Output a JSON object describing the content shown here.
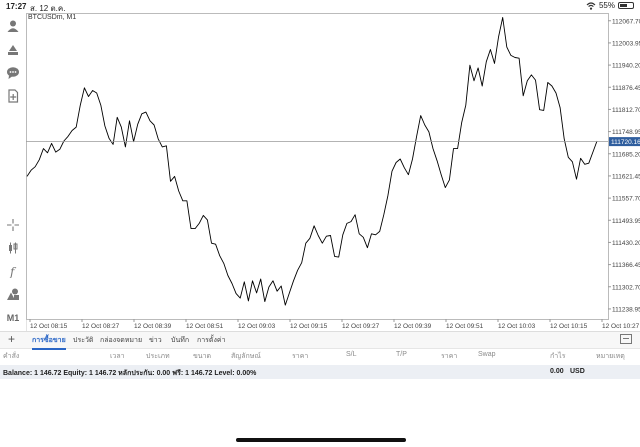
{
  "status_bar": {
    "time": "17:27",
    "date": "ส. 12 ต.ค.",
    "battery": "55%",
    "battery_fraction": 0.55
  },
  "chart": {
    "symbol": "BTCUSDm, M1",
    "current_price": "111720.16",
    "current_value": 111720.16,
    "line_color": "#000000",
    "price_tag_color": "#2f5e9e",
    "price_labels": [
      "112067.70",
      "112003.95",
      "111940.20",
      "111876.45",
      "111812.70",
      "111748.95",
      "111685.20",
      "111621.45",
      "111557.70",
      "111493.95",
      "111430.20",
      "111366.45",
      "111302.70",
      "111238.95"
    ],
    "time_labels": [
      "12 Oct 08:15",
      "12 Oct 08:27",
      "12 Oct 08:39",
      "12 Oct 08:51",
      "12 Oct 09:03",
      "12 Oct 09:15",
      "12 Oct 09:27",
      "12 Oct 09:39",
      "12 Oct 09:51",
      "12 Oct 10:03",
      "12 Oct 10:15",
      "12 Oct 10:27"
    ]
  },
  "chart_data": {
    "type": "line",
    "title": "BTCUSDm, M1",
    "x_range": [
      "12 Oct 08:12",
      "12 Oct 10:29"
    ],
    "ylim": [
      111210,
      112090
    ],
    "grid": false,
    "series": [
      {
        "name": "BTCUSDm",
        "values": [
          111620,
          111638,
          111648,
          111668,
          111700,
          111688,
          111715,
          111690,
          111698,
          111722,
          111735,
          111752,
          111762,
          111825,
          111875,
          111850,
          111867,
          111860,
          111825,
          111765,
          111730,
          111712,
          111790,
          111762,
          111705,
          111780,
          111720,
          111770,
          111800,
          111805,
          111780,
          111768,
          111728,
          111705,
          111708,
          111606,
          111620,
          111578,
          111550,
          111550,
          111470,
          111470,
          111485,
          111508,
          111495,
          111428,
          111425,
          111392,
          111370,
          111335,
          111312,
          111283,
          111270,
          111317,
          111262,
          111320,
          111285,
          111325,
          111260,
          111302,
          111320,
          111290,
          111305,
          111250,
          111285,
          111320,
          111350,
          111372,
          111428,
          111442,
          111478,
          111450,
          111428,
          111448,
          111450,
          111390,
          111388,
          111452,
          111485,
          111490,
          111510,
          111455,
          111445,
          111415,
          111455,
          111452,
          111462,
          111510,
          111565,
          111635,
          111660,
          111670,
          111645,
          111625,
          111670,
          111735,
          111795,
          111768,
          111748,
          111700,
          111665,
          111625,
          111588,
          111610,
          111700,
          111700,
          111775,
          111825,
          111940,
          111895,
          111932,
          111880,
          111950,
          111985,
          111945,
          112022,
          112077,
          111992,
          111968,
          111962,
          111960,
          111852,
          111895,
          111912,
          111897,
          111812,
          111810,
          111890,
          111880,
          111860,
          111818,
          111728,
          111675,
          111662,
          111612,
          111672,
          111655,
          111658,
          111690,
          111722
        ]
      }
    ]
  },
  "tabs": {
    "items": [
      {
        "label": "การซื้อขาย",
        "active": true
      },
      {
        "label": "ประวัติ",
        "active": false
      },
      {
        "label": "กล่องจดหมาย",
        "active": false
      },
      {
        "label": "ข่าว",
        "active": false
      },
      {
        "label": "บันทึก",
        "active": false
      },
      {
        "label": "การตั้งค่า",
        "active": false
      }
    ]
  },
  "table_header": [
    "คำสั่ง",
    "เวลา",
    "ประเภท",
    "ขนาด",
    "สัญลักษณ์",
    "ราคา",
    "S/L",
    "T/P",
    "ราคา",
    "Swap",
    "กำไร",
    "หมายเหตุ"
  ],
  "balance": {
    "text": "Balance: 1 146.72 Equity: 1 146.72 หลักประกัน: 0.00 ฟรี: 1 146.72 Level: 0.00%",
    "profit": "0.00",
    "currency": "USD"
  },
  "toolbar": {
    "icons": [
      "account-icon",
      "trade-icon",
      "chat-icon",
      "new-chart-icon",
      "crosshair-icon",
      "candles-icon",
      "indicator-icon",
      "objects-icon"
    ],
    "timeframe": "M1"
  }
}
